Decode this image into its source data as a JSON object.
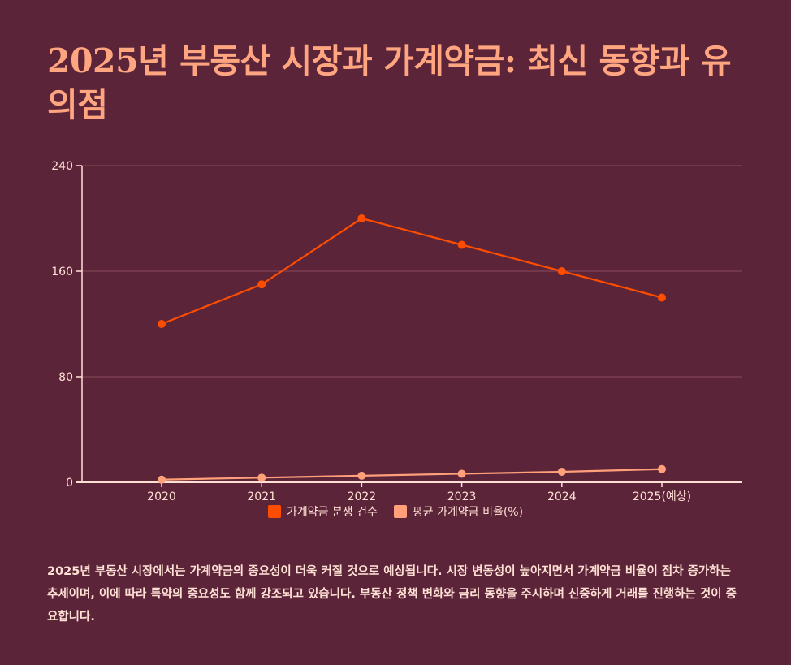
{
  "title": "2025년 부동산 시장과 가계약금: 최신 동향과 유의점",
  "description": "2025년 부동산 시장에서는 가계약금의 중요성이 더욱 커질 것으로 예상됩니다. 시장 변동성이 높아지면서 가계약금 비율이 점차 증가하는 추세이며, 이에 따라 특약의 중요성도 함께 강조되고 있습니다. 부동산 정책 변화와 금리 동향을 주시하며 신중하게 거래를 진행하는 것이 중요합니다.",
  "chart_data": {
    "type": "line",
    "categories": [
      "2020",
      "2021",
      "2022",
      "2023",
      "2024",
      "2025(예상)"
    ],
    "series": [
      {
        "name": "가계약금 분쟁 건수",
        "color": "#ff4d00",
        "values": [
          120,
          150,
          200,
          180,
          160,
          140
        ]
      },
      {
        "name": "평균 가계약금 비율(%)",
        "color": "#ffa07a",
        "values": [
          2,
          3.5,
          5,
          6.5,
          8,
          10
        ]
      }
    ],
    "ylim": [
      0,
      240
    ],
    "yticks": [
      0,
      80,
      160,
      240
    ],
    "grid": true,
    "legend": "bottom"
  }
}
